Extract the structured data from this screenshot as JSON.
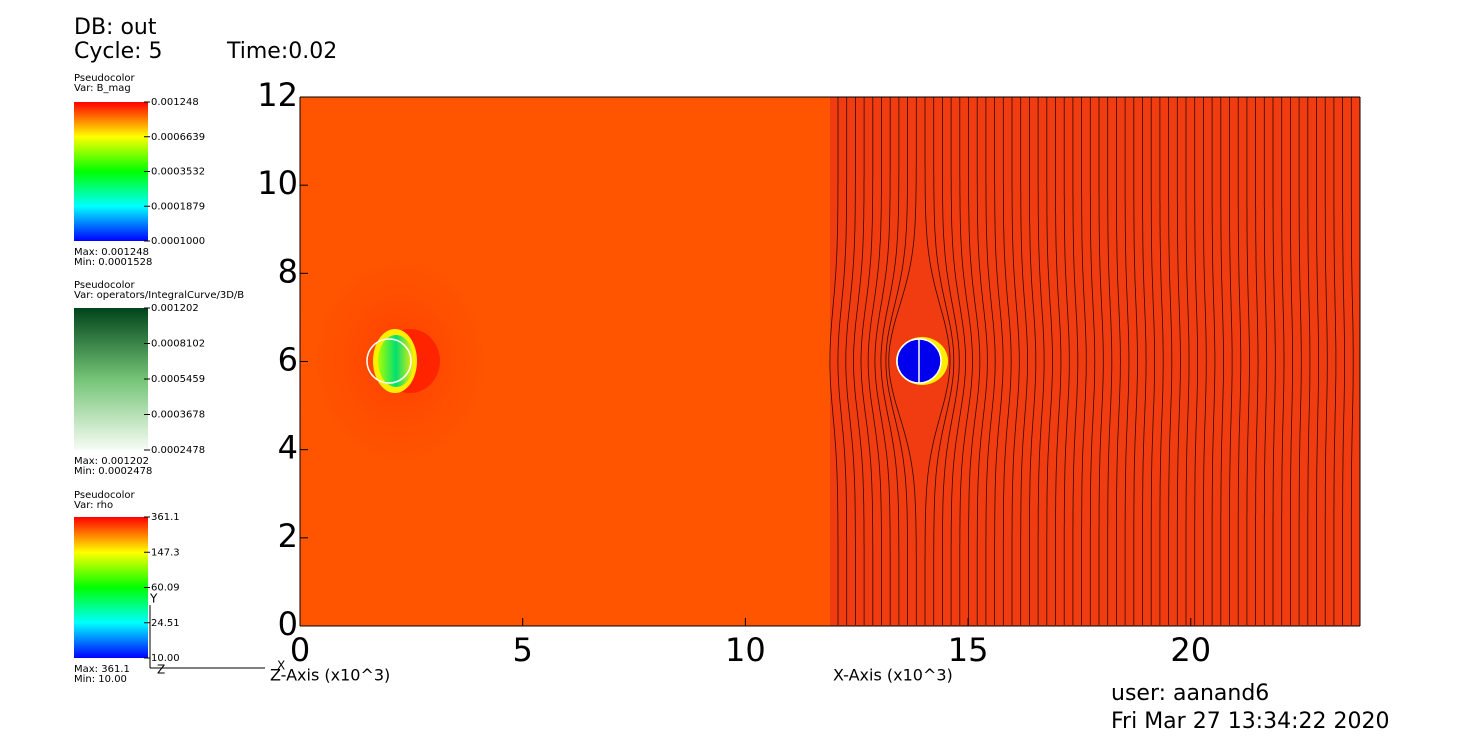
{
  "header": {
    "db": "DB: out",
    "cycle": "Cycle: 5",
    "time": "Time:0.02"
  },
  "legends": [
    {
      "title": "Pseudocolor",
      "var": "Var: B_mag",
      "labels": [
        "0.001248",
        "0.0006639",
        "0.0003532",
        "0.0001879",
        "0.0001000"
      ],
      "max": "Max:  0.001248",
      "min": "Min:  0.0001528"
    },
    {
      "title": "Pseudocolor",
      "var": "Var: operators/IntegralCurve/3D/B",
      "labels": [
        "0.001202",
        "0.0008102",
        "0.0005459",
        "0.0003678",
        "0.0002478"
      ],
      "max": "Max:  0.001202",
      "min": "Min:  0.0002478"
    },
    {
      "title": "Pseudocolor",
      "var": "Var: rho",
      "labels": [
        "361.1",
        "147.3",
        "60.09",
        "24.51",
        "10.00"
      ],
      "max": "Max:  361.1",
      "min": "Min:  10.00"
    }
  ],
  "triad": {
    "y": "Y",
    "x": "X",
    "z": "Z"
  },
  "chart_data": {
    "type": "pseudocolor",
    "xlabel": "X-Axis (x10^3)",
    "zlabel": "Z-Axis (x10^3)",
    "xlim": [
      0,
      23.8
    ],
    "ylim": [
      0,
      12
    ],
    "xticks": [
      0,
      5,
      10,
      15,
      20
    ],
    "yticks": [
      0,
      2,
      4,
      6,
      8,
      10,
      12
    ]
  },
  "footer": {
    "user": "user: aanand6",
    "date": "Fri Mar 27 13:34:22 2020"
  }
}
